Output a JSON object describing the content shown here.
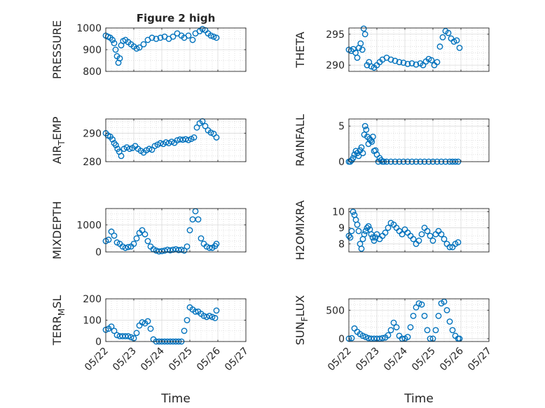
{
  "figure": {
    "title": "Figure 2 high",
    "xlabel": "Time",
    "marker_color": "#0072bd",
    "grid_color": "#d9d9d9"
  },
  "chart_data": [
    {
      "type": "scatter",
      "ylabel": "PRESSURE",
      "ylim": [
        800,
        1000
      ],
      "yticks": [
        800,
        900,
        1000
      ],
      "xlim": [
        0,
        5
      ],
      "xticks": [
        0,
        1,
        2,
        3,
        4,
        5
      ],
      "xticklabels": [
        "05/22",
        "05/23",
        "05/24",
        "05/25",
        "05/26",
        "05/27"
      ],
      "x": [
        0.0,
        0.08,
        0.16,
        0.24,
        0.3,
        0.35,
        0.4,
        0.45,
        0.5,
        0.55,
        0.62,
        0.7,
        0.8,
        0.9,
        1.0,
        1.1,
        1.2,
        1.35,
        1.5,
        1.65,
        1.8,
        1.95,
        2.1,
        2.25,
        2.4,
        2.55,
        2.7,
        2.8,
        2.95,
        3.1,
        3.2,
        3.35,
        3.45,
        3.55,
        3.65,
        3.75,
        3.85,
        3.95
      ],
      "y": [
        965,
        960,
        955,
        945,
        930,
        900,
        870,
        840,
        860,
        920,
        940,
        945,
        935,
        925,
        915,
        905,
        910,
        925,
        945,
        955,
        950,
        955,
        960,
        950,
        960,
        975,
        965,
        955,
        965,
        945,
        975,
        985,
        995,
        990,
        975,
        965,
        960,
        955
      ]
    },
    {
      "type": "scatter",
      "ylabel": "THETA",
      "ylim": [
        289,
        296
      ],
      "yticks": [
        290,
        295
      ],
      "xlim": [
        0,
        5
      ],
      "xticks": [
        0,
        1,
        2,
        3,
        4,
        5
      ],
      "xticklabels": [
        "05/22",
        "05/23",
        "05/24",
        "05/25",
        "05/26",
        "05/27"
      ],
      "x": [
        0.0,
        0.08,
        0.16,
        0.24,
        0.3,
        0.36,
        0.42,
        0.48,
        0.53,
        0.58,
        0.65,
        0.72,
        0.8,
        0.9,
        1.0,
        1.1,
        1.2,
        1.35,
        1.5,
        1.65,
        1.8,
        1.95,
        2.1,
        2.25,
        2.4,
        2.55,
        2.65,
        2.75,
        2.85,
        2.95,
        3.05,
        3.15,
        3.25,
        3.35,
        3.45,
        3.55,
        3.65,
        3.75,
        3.85,
        3.95
      ],
      "y": [
        292.5,
        292.3,
        292.6,
        292.0,
        291.2,
        292.8,
        293.5,
        292.5,
        295.9,
        295.0,
        290.0,
        290.5,
        289.8,
        289.6,
        290.0,
        290.5,
        290.9,
        291.2,
        290.9,
        290.7,
        290.5,
        290.4,
        290.2,
        290.3,
        290.1,
        290.3,
        290.0,
        290.6,
        291.0,
        290.8,
        290.0,
        290.5,
        293.0,
        294.5,
        295.5,
        295.2,
        294.3,
        293.8,
        294.0,
        292.8
      ]
    },
    {
      "type": "scatter",
      "ylabel": "AIR_TEMP",
      "ylim": [
        280,
        295
      ],
      "yticks": [
        280,
        290
      ],
      "xlim": [
        0,
        5
      ],
      "xticks": [
        0,
        1,
        2,
        3,
        4,
        5
      ],
      "xticklabels": [
        "05/22",
        "05/23",
        "05/24",
        "05/25",
        "05/26",
        "05/27"
      ],
      "x": [
        0.0,
        0.08,
        0.16,
        0.24,
        0.3,
        0.36,
        0.42,
        0.48,
        0.55,
        0.65,
        0.75,
        0.85,
        0.95,
        1.05,
        1.15,
        1.25,
        1.35,
        1.45,
        1.55,
        1.65,
        1.75,
        1.85,
        1.95,
        2.05,
        2.15,
        2.25,
        2.35,
        2.45,
        2.55,
        2.65,
        2.75,
        2.85,
        2.95,
        3.05,
        3.15,
        3.25,
        3.35,
        3.45,
        3.55,
        3.65,
        3.75,
        3.85,
        3.95
      ],
      "y": [
        290.0,
        289.2,
        288.8,
        287.8,
        286.5,
        285.8,
        284.5,
        283.5,
        282.0,
        284.5,
        285.0,
        284.5,
        284.8,
        285.5,
        284.5,
        283.8,
        283.2,
        284.0,
        284.5,
        284.2,
        285.5,
        286.0,
        286.5,
        286.2,
        286.8,
        286.5,
        287.0,
        286.6,
        287.5,
        287.8,
        287.7,
        287.9,
        287.6,
        288.0,
        288.5,
        292.0,
        293.5,
        294.2,
        292.5,
        291.0,
        290.2,
        289.8,
        288.5
      ]
    },
    {
      "type": "scatter",
      "ylabel": "RAINFALL",
      "ylim": [
        0,
        6
      ],
      "yticks": [
        0,
        5
      ],
      "xlim": [
        0,
        5
      ],
      "xticks": [
        0,
        1,
        2,
        3,
        4,
        5
      ],
      "xticklabels": [
        "05/22",
        "05/23",
        "05/24",
        "05/25",
        "05/26",
        "05/27"
      ],
      "x": [
        0.0,
        0.05,
        0.1,
        0.15,
        0.2,
        0.25,
        0.3,
        0.35,
        0.4,
        0.45,
        0.5,
        0.55,
        0.58,
        0.62,
        0.66,
        0.7,
        0.74,
        0.78,
        0.82,
        0.86,
        0.9,
        0.95,
        1.0,
        1.05,
        1.1,
        1.15,
        1.2,
        1.25,
        1.35,
        1.5,
        1.65,
        1.8,
        1.95,
        2.1,
        2.25,
        2.4,
        2.55,
        2.7,
        2.85,
        3.0,
        3.15,
        3.3,
        3.45,
        3.6,
        3.7,
        3.8,
        3.9
      ],
      "y": [
        0.0,
        0.0,
        0.2,
        0.5,
        1.0,
        1.5,
        1.2,
        0.8,
        1.6,
        2.0,
        1.2,
        3.8,
        5.0,
        4.5,
        3.5,
        2.5,
        3.2,
        3.0,
        2.8,
        3.5,
        1.5,
        1.6,
        1.0,
        0.0,
        0.5,
        0.2,
        0.0,
        0.0,
        0.0,
        0.0,
        0.0,
        0.0,
        0.0,
        0.0,
        0.0,
        0.0,
        0.0,
        0.0,
        0.0,
        0.0,
        0.0,
        0.0,
        0.0,
        0.0,
        0.0,
        0.0,
        0.0
      ]
    },
    {
      "type": "scatter",
      "ylabel": "MIXDEPTH",
      "ylim": [
        0,
        1600
      ],
      "yticks": [
        0,
        1000
      ],
      "xlim": [
        0,
        5
      ],
      "xticks": [
        0,
        1,
        2,
        3,
        4,
        5
      ],
      "xticklabels": [
        "05/22",
        "05/23",
        "05/24",
        "05/25",
        "05/26",
        "05/27"
      ],
      "x": [
        0.0,
        0.1,
        0.2,
        0.3,
        0.4,
        0.5,
        0.6,
        0.7,
        0.8,
        0.9,
        1.0,
        1.1,
        1.2,
        1.3,
        1.4,
        1.5,
        1.6,
        1.7,
        1.8,
        1.9,
        2.0,
        2.1,
        2.2,
        2.3,
        2.4,
        2.5,
        2.6,
        2.7,
        2.8,
        2.9,
        3.0,
        3.1,
        3.2,
        3.3,
        3.4,
        3.5,
        3.6,
        3.7,
        3.8,
        3.9,
        3.95
      ],
      "y": [
        400,
        450,
        750,
        600,
        350,
        300,
        200,
        150,
        180,
        200,
        300,
        500,
        700,
        800,
        650,
        400,
        200,
        100,
        50,
        20,
        30,
        50,
        80,
        60,
        80,
        100,
        70,
        80,
        50,
        200,
        800,
        1200,
        1500,
        1200,
        500,
        300,
        200,
        150,
        150,
        220,
        300
      ]
    },
    {
      "type": "scatter",
      "ylabel": "H2OMIXRA",
      "ylim": [
        7.5,
        10.2
      ],
      "yticks": [
        8,
        9,
        10
      ],
      "xlim": [
        0,
        5
      ],
      "xticks": [
        0,
        1,
        2,
        3,
        4,
        5
      ],
      "xticklabels": [
        "05/22",
        "05/23",
        "05/24",
        "05/25",
        "05/26",
        "05/27"
      ],
      "x": [
        0.0,
        0.05,
        0.1,
        0.15,
        0.2,
        0.25,
        0.3,
        0.35,
        0.4,
        0.45,
        0.5,
        0.55,
        0.6,
        0.65,
        0.7,
        0.75,
        0.8,
        0.85,
        0.9,
        0.95,
        1.0,
        1.1,
        1.2,
        1.3,
        1.4,
        1.5,
        1.6,
        1.7,
        1.8,
        1.9,
        2.0,
        2.1,
        2.2,
        2.3,
        2.4,
        2.5,
        2.6,
        2.7,
        2.8,
        2.9,
        3.0,
        3.1,
        3.2,
        3.3,
        3.4,
        3.5,
        3.6,
        3.7,
        3.8,
        3.9
      ],
      "y": [
        8.5,
        8.4,
        8.8,
        10.0,
        9.8,
        9.5,
        9.2,
        8.8,
        8.0,
        7.7,
        8.3,
        8.6,
        8.8,
        9.0,
        9.1,
        8.9,
        8.6,
        8.4,
        8.2,
        8.4,
        8.6,
        8.3,
        8.5,
        8.7,
        9.0,
        9.3,
        9.2,
        9.0,
        8.8,
        8.6,
        8.9,
        8.7,
        8.5,
        8.3,
        8.0,
        8.2,
        8.6,
        9.0,
        8.8,
        8.5,
        8.2,
        8.6,
        8.8,
        8.6,
        8.3,
        8.0,
        7.8,
        7.8,
        8.0,
        8.1
      ]
    },
    {
      "type": "scatter",
      "ylabel": "TERR_MSL",
      "ylim": [
        0,
        200
      ],
      "yticks": [
        0,
        100,
        200
      ],
      "xlim": [
        0,
        5
      ],
      "xticks": [
        0,
        1,
        2,
        3,
        4,
        5
      ],
      "xticklabels": [
        "05/22",
        "05/23",
        "05/24",
        "05/25",
        "05/26",
        "05/27"
      ],
      "x": [
        0.0,
        0.1,
        0.2,
        0.3,
        0.4,
        0.5,
        0.6,
        0.7,
        0.8,
        0.9,
        1.0,
        1.1,
        1.2,
        1.3,
        1.4,
        1.5,
        1.6,
        1.7,
        1.8,
        1.9,
        2.0,
        2.1,
        2.2,
        2.3,
        2.4,
        2.5,
        2.6,
        2.7,
        2.8,
        2.9,
        3.0,
        3.1,
        3.2,
        3.3,
        3.4,
        3.5,
        3.6,
        3.7,
        3.8,
        3.9,
        3.95
      ],
      "y": [
        55,
        60,
        70,
        50,
        30,
        25,
        25,
        25,
        25,
        20,
        15,
        40,
        75,
        90,
        85,
        95,
        60,
        10,
        0,
        0,
        0,
        0,
        0,
        0,
        0,
        0,
        0,
        0,
        50,
        100,
        160,
        150,
        140,
        140,
        130,
        120,
        115,
        120,
        115,
        110,
        145
      ]
    },
    {
      "type": "scatter",
      "ylabel": "SUN_FLUX",
      "ylim": [
        -50,
        700
      ],
      "yticks": [
        0,
        500
      ],
      "xlim": [
        0,
        5
      ],
      "xticks": [
        0,
        1,
        2,
        3,
        4,
        5
      ],
      "xticklabels": [
        "05/22",
        "05/23",
        "05/24",
        "05/25",
        "05/26",
        "05/27"
      ],
      "x": [
        0.0,
        0.1,
        0.2,
        0.3,
        0.4,
        0.5,
        0.6,
        0.7,
        0.8,
        0.9,
        1.0,
        1.1,
        1.2,
        1.3,
        1.4,
        1.5,
        1.6,
        1.7,
        1.8,
        1.9,
        2.0,
        2.1,
        2.2,
        2.3,
        2.4,
        2.5,
        2.6,
        2.7,
        2.8,
        2.9,
        3.0,
        3.1,
        3.2,
        3.3,
        3.4,
        3.5,
        3.6,
        3.7,
        3.8,
        3.9,
        3.95
      ],
      "y": [
        0,
        10,
        180,
        120,
        80,
        50,
        30,
        10,
        0,
        0,
        0,
        0,
        10,
        20,
        60,
        150,
        280,
        200,
        50,
        0,
        0,
        30,
        200,
        400,
        550,
        620,
        600,
        400,
        150,
        0,
        0,
        150,
        400,
        620,
        650,
        500,
        300,
        150,
        50,
        0,
        0
      ]
    }
  ]
}
